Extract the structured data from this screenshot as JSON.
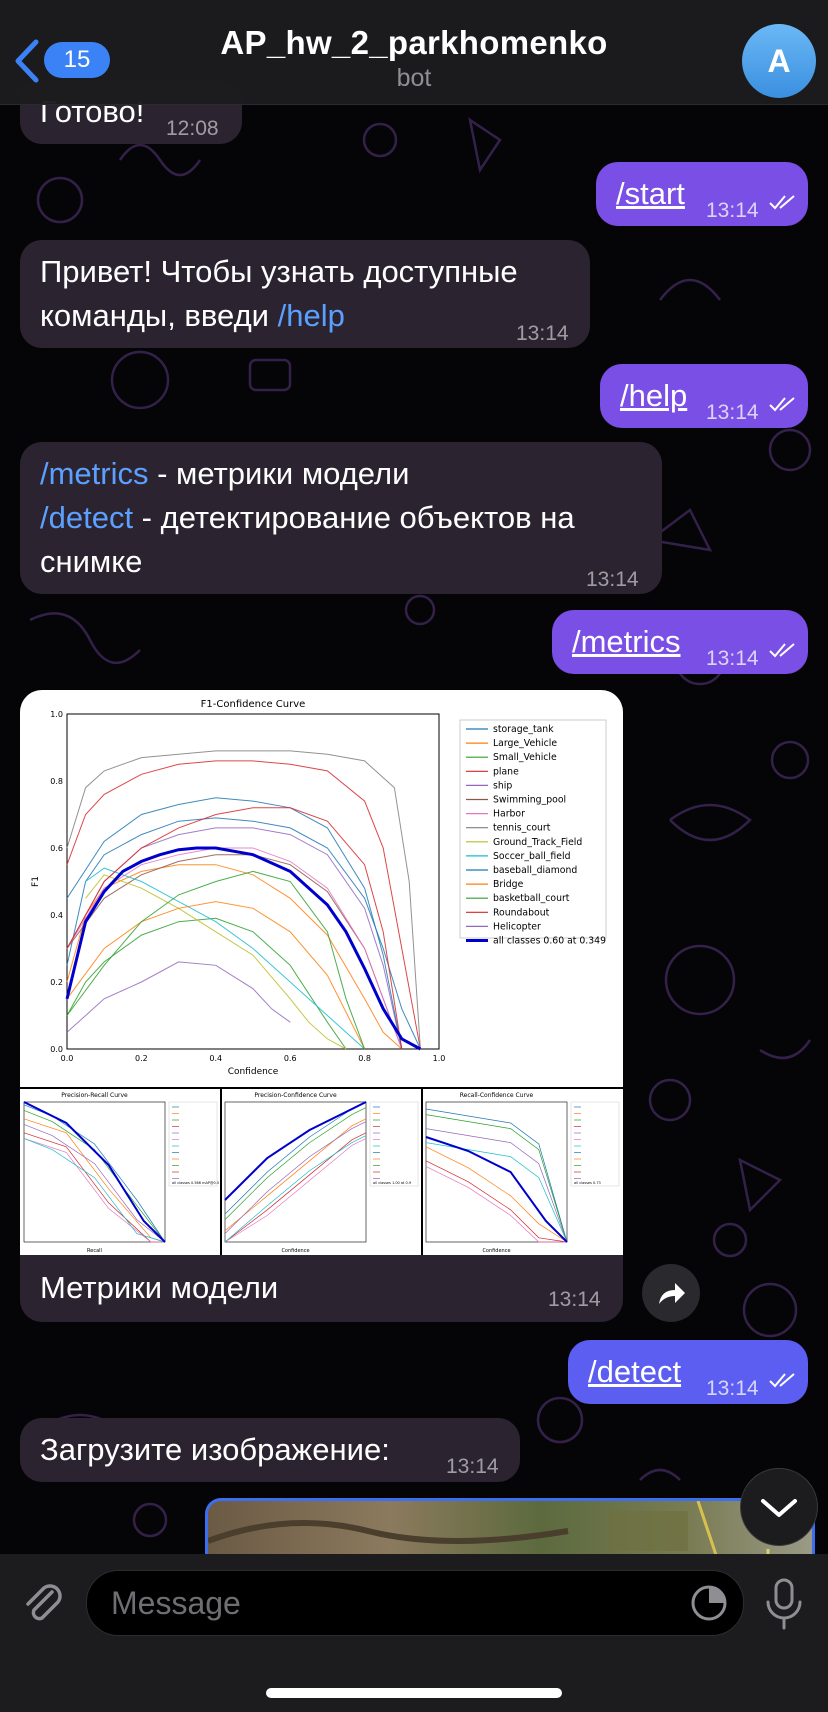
{
  "header": {
    "back_count": "15",
    "title": "AP_hw_2_parkhomenko",
    "subtitle": "bot",
    "avatar_letter": "A"
  },
  "messages": [
    {
      "dir": "in",
      "text": "Готово!",
      "time": "12:08"
    },
    {
      "dir": "out",
      "cmd": "/start",
      "time": "13:14"
    },
    {
      "dir": "in",
      "line1": "Привет! Чтобы узнать доступные",
      "line2_pre": "команды, введи ",
      "line2_cmd": "/help",
      "time": "13:14"
    },
    {
      "dir": "out",
      "cmd": "/help",
      "time": "13:14"
    },
    {
      "dir": "in",
      "l1_cmd": "/metrics",
      "l1_text": " - метрики модели",
      "l2_cmd": "/detect",
      "l2_text": " - детектирование объектов на",
      "l3": "снимке",
      "time": "13:14"
    },
    {
      "dir": "out",
      "cmd": "/metrics",
      "time": "13:14"
    },
    {
      "dir": "in",
      "caption": "Метрики модели",
      "time": "13:14"
    },
    {
      "dir": "out",
      "cmd": "/detect",
      "time": "13:14"
    },
    {
      "dir": "in",
      "text": "Загрузите изображение:",
      "time": "13:14"
    }
  ],
  "input": {
    "placeholder": "Message"
  },
  "chart_data": [
    {
      "type": "line",
      "title": "F1-Confidence Curve",
      "xlabel": "Confidence",
      "ylabel": "F1",
      "xlim": [
        0,
        1
      ],
      "ylim": [
        0,
        1
      ],
      "x_ticks": [
        "0.0",
        "0.2",
        "0.4",
        "0.6",
        "0.8",
        "1.0"
      ],
      "y_ticks": [
        "0.0",
        "0.2",
        "0.4",
        "0.6",
        "0.8",
        "1.0"
      ],
      "legend": [
        "storage_tank",
        "Large_Vehicle",
        "Small_Vehicle",
        "plane",
        "ship",
        "Swimming_pool",
        "Harbor",
        "tennis_court",
        "Ground_Track_Field",
        "Soccer_ball_field",
        "baseball_diamond",
        "Bridge",
        "basketball_court",
        "Roundabout",
        "Helicopter",
        "all classes 0.60 at 0.349"
      ],
      "legend_colors": [
        "#1f77b4",
        "#ff7f0e",
        "#2ca02c",
        "#d62728",
        "#9467bd",
        "#8c564b",
        "#e377c2",
        "#7f7f7f",
        "#bcbd22",
        "#17becf",
        "#1f77b4",
        "#ff7f0e",
        "#2ca02c",
        "#d62728",
        "#9467bd",
        "#0000cc"
      ],
      "series": [
        {
          "name": "storage_tank",
          "x": [
            0,
            0.05,
            0.1,
            0.2,
            0.3,
            0.4,
            0.5,
            0.6,
            0.7,
            0.8,
            0.85,
            0.9,
            0.95
          ],
          "y": [
            0.25,
            0.5,
            0.58,
            0.64,
            0.68,
            0.69,
            0.68,
            0.66,
            0.6,
            0.45,
            0.3,
            0.12,
            0
          ]
        },
        {
          "name": "Large_Vehicle",
          "x": [
            0,
            0.05,
            0.1,
            0.2,
            0.3,
            0.4,
            0.5,
            0.6,
            0.7,
            0.8,
            0.85,
            0.9
          ],
          "y": [
            0.2,
            0.4,
            0.48,
            0.53,
            0.55,
            0.55,
            0.52,
            0.45,
            0.34,
            0.15,
            0.05,
            0
          ]
        },
        {
          "name": "Small_Vehicle",
          "x": [
            0,
            0.05,
            0.1,
            0.2,
            0.3,
            0.4,
            0.5,
            0.6,
            0.7,
            0.75
          ],
          "y": [
            0.1,
            0.2,
            0.26,
            0.34,
            0.38,
            0.39,
            0.35,
            0.25,
            0.08,
            0
          ]
        },
        {
          "name": "plane",
          "x": [
            0,
            0.05,
            0.1,
            0.2,
            0.3,
            0.4,
            0.5,
            0.6,
            0.7,
            0.8,
            0.85,
            0.9,
            0.95
          ],
          "y": [
            0.55,
            0.7,
            0.76,
            0.82,
            0.85,
            0.86,
            0.86,
            0.85,
            0.83,
            0.74,
            0.6,
            0.3,
            0
          ]
        },
        {
          "name": "ship",
          "x": [
            0,
            0.1,
            0.2,
            0.3,
            0.4,
            0.5,
            0.6,
            0.7,
            0.8,
            0.85,
            0.9
          ],
          "y": [
            0.3,
            0.5,
            0.6,
            0.64,
            0.66,
            0.66,
            0.64,
            0.58,
            0.42,
            0.25,
            0
          ]
        },
        {
          "name": "Swimming_pool",
          "x": [
            0,
            0.1,
            0.2,
            0.3,
            0.4,
            0.5,
            0.6,
            0.7,
            0.8,
            0.85,
            0.9
          ],
          "y": [
            0.3,
            0.45,
            0.52,
            0.56,
            0.58,
            0.58,
            0.55,
            0.47,
            0.3,
            0.15,
            0
          ]
        },
        {
          "name": "Harbor",
          "x": [
            0,
            0.1,
            0.2,
            0.3,
            0.4,
            0.5,
            0.6,
            0.7,
            0.8,
            0.9
          ],
          "y": [
            0.3,
            0.48,
            0.55,
            0.58,
            0.6,
            0.6,
            0.56,
            0.48,
            0.3,
            0
          ]
        },
        {
          "name": "tennis_court",
          "x": [
            0,
            0.05,
            0.1,
            0.2,
            0.3,
            0.4,
            0.5,
            0.6,
            0.7,
            0.8,
            0.88,
            0.92,
            0.95
          ],
          "y": [
            0.6,
            0.78,
            0.83,
            0.87,
            0.88,
            0.89,
            0.89,
            0.89,
            0.88,
            0.86,
            0.78,
            0.5,
            0
          ]
        },
        {
          "name": "Ground_Track_Field",
          "x": [
            0.05,
            0.1,
            0.2,
            0.3,
            0.4,
            0.5,
            0.6,
            0.65,
            0.7,
            0.75
          ],
          "y": [
            0.45,
            0.52,
            0.48,
            0.42,
            0.35,
            0.28,
            0.15,
            0.08,
            0.03,
            0
          ]
        },
        {
          "name": "Soccer_ball_field",
          "x": [
            0.05,
            0.1,
            0.2,
            0.3,
            0.4,
            0.5,
            0.6,
            0.7,
            0.8
          ],
          "y": [
            0.5,
            0.54,
            0.5,
            0.44,
            0.38,
            0.3,
            0.2,
            0.1,
            0
          ]
        },
        {
          "name": "baseball_diamond",
          "x": [
            0,
            0.1,
            0.2,
            0.3,
            0.4,
            0.5,
            0.6,
            0.7,
            0.8,
            0.85,
            0.9
          ],
          "y": [
            0.45,
            0.62,
            0.7,
            0.73,
            0.75,
            0.74,
            0.72,
            0.66,
            0.48,
            0.28,
            0
          ]
        },
        {
          "name": "Bridge",
          "x": [
            0,
            0.1,
            0.2,
            0.3,
            0.4,
            0.5,
            0.6,
            0.7,
            0.8
          ],
          "y": [
            0.15,
            0.3,
            0.38,
            0.42,
            0.44,
            0.42,
            0.35,
            0.22,
            0
          ]
        },
        {
          "name": "basketball_court",
          "x": [
            0,
            0.1,
            0.2,
            0.3,
            0.4,
            0.5,
            0.6,
            0.7,
            0.75,
            0.8
          ],
          "y": [
            0.1,
            0.25,
            0.38,
            0.46,
            0.5,
            0.53,
            0.5,
            0.35,
            0.15,
            0
          ]
        },
        {
          "name": "Roundabout",
          "x": [
            0,
            0.1,
            0.2,
            0.3,
            0.4,
            0.5,
            0.6,
            0.7,
            0.8,
            0.85,
            0.9
          ],
          "y": [
            0.3,
            0.5,
            0.6,
            0.66,
            0.7,
            0.72,
            0.72,
            0.68,
            0.55,
            0.35,
            0
          ]
        },
        {
          "name": "Helicopter",
          "x": [
            0,
            0.1,
            0.2,
            0.3,
            0.4,
            0.5,
            0.55,
            0.6
          ],
          "y": [
            0.05,
            0.15,
            0.2,
            0.26,
            0.25,
            0.18,
            0.12,
            0.08
          ]
        },
        {
          "name": "all classes 0.60 at 0.349",
          "x": [
            0,
            0.05,
            0.1,
            0.15,
            0.2,
            0.25,
            0.3,
            0.349,
            0.4,
            0.5,
            0.6,
            0.7,
            0.75,
            0.8,
            0.85,
            0.9,
            0.95
          ],
          "y": [
            0.15,
            0.38,
            0.47,
            0.53,
            0.56,
            0.58,
            0.595,
            0.6,
            0.6,
            0.58,
            0.53,
            0.43,
            0.35,
            0.24,
            0.12,
            0.03,
            0
          ]
        }
      ]
    },
    {
      "type": "line",
      "title": "Precision-Recall Curve",
      "xlabel": "Recall",
      "ylabel": "",
      "summary": "all classes 0.566 mAP@0.5"
    },
    {
      "type": "line",
      "title": "Precision-Confidence Curve",
      "xlabel": "Confidence",
      "ylabel": "",
      "summary": "all classes 1.00 at 0.9"
    },
    {
      "type": "line",
      "title": "Recall-Confidence Curve",
      "xlabel": "Confidence",
      "ylabel": "",
      "summary": "all classes 0.73"
    }
  ]
}
